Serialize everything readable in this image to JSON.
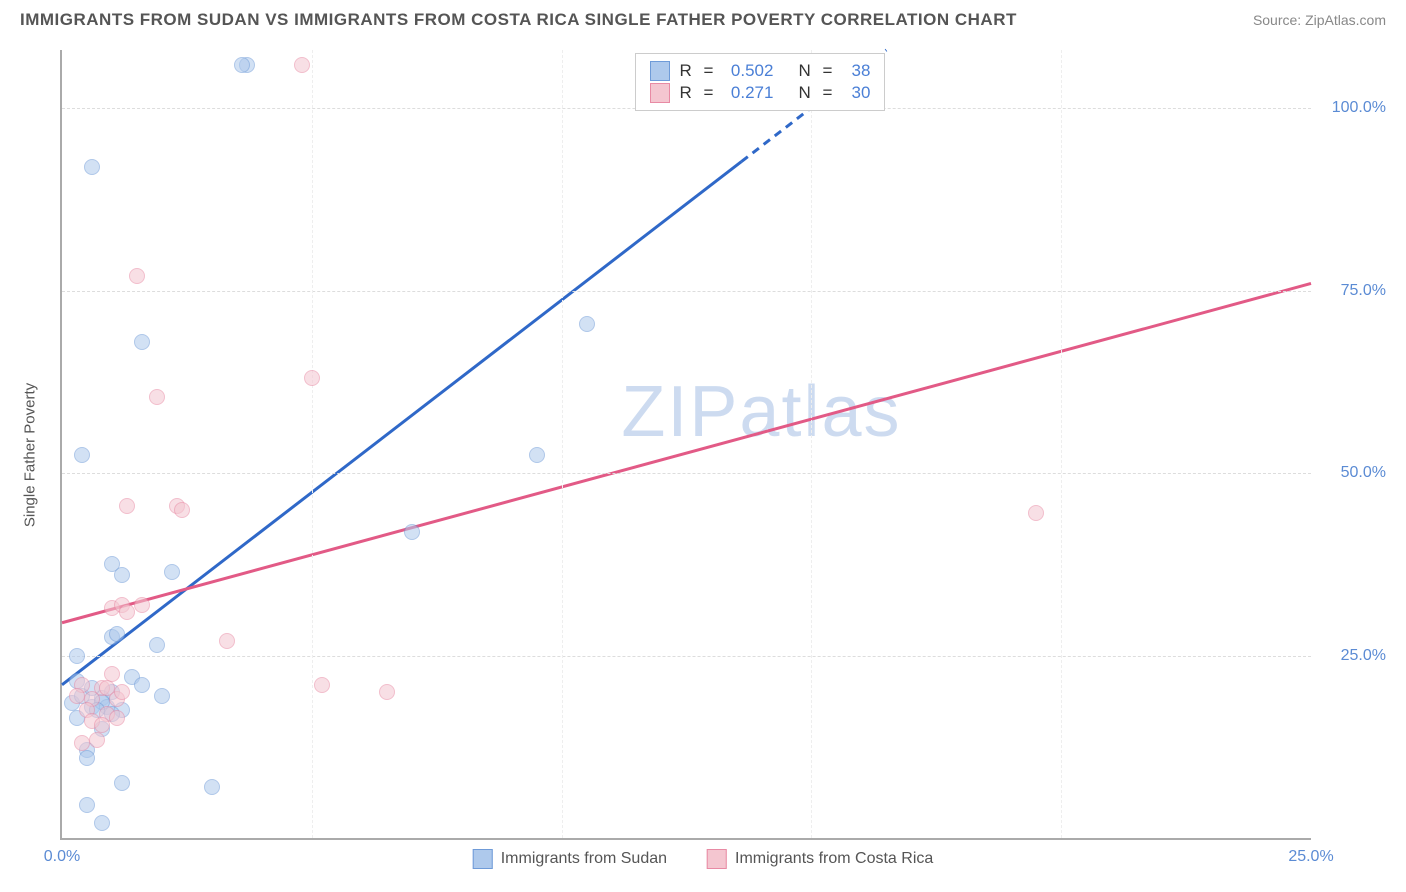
{
  "title": "IMMIGRANTS FROM SUDAN VS IMMIGRANTS FROM COSTA RICA SINGLE FATHER POVERTY CORRELATION CHART",
  "source": "Source: ZipAtlas.com",
  "watermark": "ZIPatlas",
  "ylabel": "Single Father Poverty",
  "chart": {
    "type": "scatter-with-regression",
    "xmin": 0,
    "xmax": 25,
    "ymin": 0,
    "ymax": 108,
    "ytick_positions": [
      25,
      50,
      75,
      100
    ],
    "ytick_labels": [
      "25.0%",
      "50.0%",
      "75.0%",
      "100.0%"
    ],
    "xtick_positions": [
      0,
      25
    ],
    "xtick_labels": [
      "0.0%",
      "25.0%"
    ],
    "gridline_v_positions": [
      5,
      10,
      15,
      20
    ],
    "grid_color": "#dddddd",
    "axis_color": "#aaaaaa",
    "tick_label_color": "#5b8bd4",
    "tick_fontsize": 16,
    "background_color": "#ffffff",
    "point_radius": 8,
    "point_opacity": 0.55,
    "series": [
      {
        "name": "Immigrants from Sudan",
        "fill": "#aec9ec",
        "stroke": "#6f9bd8",
        "line_color": "#2f68c8",
        "line_width": 3,
        "r": "0.502",
        "n": "38",
        "reg_line": {
          "x1": 0,
          "y1": 21,
          "x2": 16.5,
          "y2": 108,
          "dashed_from_x": 13.6
        },
        "points": [
          [
            0.2,
            18.5
          ],
          [
            0.3,
            16.5
          ],
          [
            0.5,
            12.0
          ],
          [
            0.5,
            4.5
          ],
          [
            0.4,
            19.5
          ],
          [
            0.6,
            18.0
          ],
          [
            0.8,
            15.0
          ],
          [
            0.8,
            19.2
          ],
          [
            1.0,
            27.5
          ],
          [
            1.0,
            20.0
          ],
          [
            1.2,
            17.5
          ],
          [
            1.4,
            22.0
          ],
          [
            1.6,
            21.0
          ],
          [
            1.0,
            37.5
          ],
          [
            0.4,
            52.5
          ],
          [
            1.2,
            36.0
          ],
          [
            1.6,
            68.0
          ],
          [
            1.9,
            26.5
          ],
          [
            2.2,
            36.5
          ],
          [
            2.0,
            19.5
          ],
          [
            3.0,
            7.0
          ],
          [
            1.2,
            7.5
          ],
          [
            0.6,
            92.0
          ],
          [
            3.7,
            106.0
          ],
          [
            3.6,
            106.0
          ],
          [
            7.0,
            42.0
          ],
          [
            9.5,
            52.5
          ],
          [
            10.5,
            70.5
          ],
          [
            1.1,
            28.0
          ],
          [
            0.9,
            18.0
          ],
          [
            0.3,
            21.5
          ],
          [
            0.6,
            20.5
          ],
          [
            0.8,
            18.7
          ],
          [
            0.3,
            25.0
          ],
          [
            0.7,
            17.5
          ],
          [
            1.0,
            17.0
          ],
          [
            0.5,
            11.0
          ],
          [
            0.8,
            2.0
          ]
        ]
      },
      {
        "name": "Immigrants from Costa Rica",
        "fill": "#f4c6d0",
        "stroke": "#e88aa4",
        "line_color": "#e25a86",
        "line_width": 3,
        "r": "0.271",
        "n": "30",
        "reg_line": {
          "x1": 0,
          "y1": 29.5,
          "x2": 25,
          "y2": 76
        },
        "points": [
          [
            0.4,
            21.0
          ],
          [
            0.6,
            19.0
          ],
          [
            0.8,
            20.5
          ],
          [
            0.9,
            17.0
          ],
          [
            1.0,
            31.5
          ],
          [
            1.2,
            32.0
          ],
          [
            1.3,
            31.0
          ],
          [
            1.3,
            45.5
          ],
          [
            1.6,
            32.0
          ],
          [
            2.3,
            45.5
          ],
          [
            2.4,
            45.0
          ],
          [
            1.9,
            60.5
          ],
          [
            1.5,
            77.0
          ],
          [
            4.8,
            106.0
          ],
          [
            3.3,
            27.0
          ],
          [
            5.0,
            63.0
          ],
          [
            6.5,
            20.0
          ],
          [
            5.2,
            21.0
          ],
          [
            19.5,
            44.5
          ],
          [
            0.3,
            19.5
          ],
          [
            0.5,
            17.5
          ],
          [
            0.6,
            16.0
          ],
          [
            0.9,
            20.5
          ],
          [
            1.1,
            19.0
          ],
          [
            1.0,
            22.5
          ],
          [
            1.2,
            20.0
          ],
          [
            0.7,
            13.5
          ],
          [
            0.4,
            13.0
          ],
          [
            0.8,
            15.5
          ],
          [
            1.1,
            16.5
          ]
        ]
      }
    ]
  },
  "legend_top": {
    "r_label": "R",
    "n_label": "N",
    "eq": "="
  },
  "legend_bottom_labels": [
    "Immigrants from Sudan",
    "Immigrants from Costa Rica"
  ]
}
